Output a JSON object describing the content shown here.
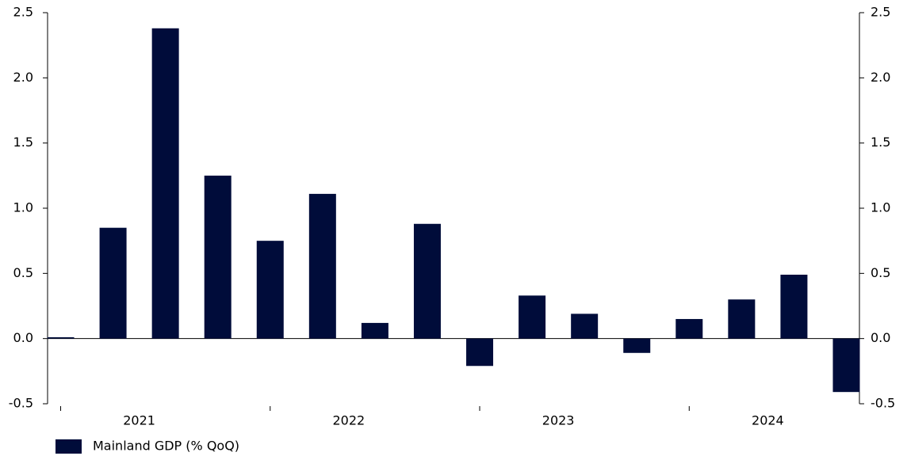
{
  "chart_data": {
    "type": "bar",
    "categories": [
      "2021",
      null,
      null,
      null,
      "2022",
      null,
      null,
      null,
      "2023",
      null,
      null,
      null,
      "2024",
      null,
      null,
      null
    ],
    "series": [
      {
        "name": "Mainland GDP (% QoQ)",
        "color": "#000c3a",
        "values": [
          0.01,
          0.85,
          2.38,
          1.25,
          0.75,
          1.11,
          0.12,
          0.88,
          -0.21,
          0.33,
          0.19,
          -0.11,
          0.15,
          0.3,
          0.49,
          -0.41
        ]
      }
    ],
    "ylim": [
      -0.5,
      2.5
    ],
    "yticks": [
      -0.5,
      {
        "value": 0,
        "label": "0.0"
      },
      0.5,
      {
        "value": 1,
        "label": "1.0"
      },
      1.5,
      {
        "value": 2,
        "label": "2.0"
      },
      2.5
    ],
    "y2lim": [
      -0.5,
      2.5
    ],
    "y2ticks": [
      -0.5,
      {
        "value": 0,
        "label": "0.0"
      },
      0.5,
      {
        "value": 1,
        "label": "1.0"
      },
      1.5,
      {
        "value": 2,
        "label": "2.0"
      },
      2.5
    ],
    "grid": false,
    "legend": "bottom-left"
  }
}
